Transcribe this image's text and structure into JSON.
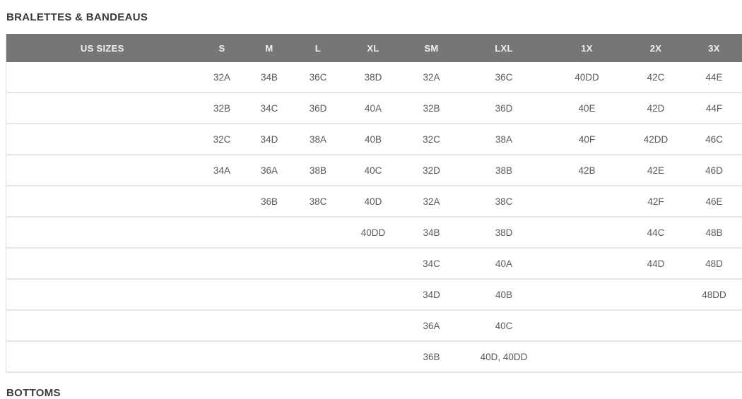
{
  "page": {
    "next_section_title": "BOTTOMS"
  },
  "chart_data": {
    "type": "table",
    "title": "BRALETTES & BANDEAUS",
    "columns": [
      "US SIZES",
      "S",
      "M",
      "L",
      "XL",
      "SM",
      "LXL",
      "1X",
      "2X",
      "3X"
    ],
    "rows": [
      [
        "",
        "32A",
        "34B",
        "36C",
        "38D",
        "32A",
        "36C",
        "40DD",
        "42C",
        "44E"
      ],
      [
        "",
        "32B",
        "34C",
        "36D",
        "40A",
        "32B",
        "36D",
        "40E",
        "42D",
        "44F"
      ],
      [
        "",
        "32C",
        "34D",
        "38A",
        "40B",
        "32C",
        "38A",
        "40F",
        "42DD",
        "46C"
      ],
      [
        "",
        "34A",
        "36A",
        "38B",
        "40C",
        "32D",
        "38B",
        "42B",
        "42E",
        "46D"
      ],
      [
        "",
        "",
        "36B",
        "38C",
        "40D",
        "32A",
        "38C",
        "",
        "42F",
        "46E"
      ],
      [
        "",
        "",
        "",
        "",
        "40DD",
        "34B",
        "38D",
        "",
        "44C",
        "48B"
      ],
      [
        "",
        "",
        "",
        "",
        "",
        "34C",
        "40A",
        "",
        "44D",
        "48D"
      ],
      [
        "",
        "",
        "",
        "",
        "",
        "34D",
        "40B",
        "",
        "",
        "48DD"
      ],
      [
        "",
        "",
        "",
        "",
        "",
        "36A",
        "40C",
        "",
        "",
        ""
      ],
      [
        "",
        "",
        "",
        "",
        "",
        "36B",
        "40D, 40DD",
        "",
        "",
        ""
      ]
    ]
  },
  "colors": {
    "header_background": "#767676",
    "header_text": "#f1f1f1",
    "cell_text": "#595959",
    "title_text": "#3b3b3b",
    "row_separator": "#e4e4e4"
  }
}
